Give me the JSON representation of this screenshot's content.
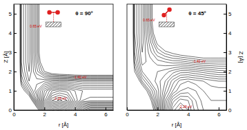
{
  "chart_data": [
    {
      "type": "contour",
      "title": "θ = 90°",
      "xlabel": "r [Å]",
      "ylabel": "Z [Å]",
      "xlim": [
        0,
        6.5
      ],
      "ylim": [
        0,
        5.5
      ],
      "xticks": [
        0,
        2,
        4,
        6
      ],
      "yticks": [
        0,
        1,
        2,
        3,
        4,
        5
      ],
      "x": [
        0,
        0.5,
        1,
        1.5,
        2,
        2.5,
        3,
        3.5,
        4,
        4.5,
        5,
        5.5,
        6,
        6.5
      ],
      "y": [
        0,
        0.5,
        1,
        1.5,
        2,
        2.5,
        3,
        3.5,
        4,
        4.5,
        5,
        5.5
      ],
      "z": [
        [
          5,
          5,
          4,
          2.0,
          0.5,
          -0.5,
          -0.8,
          -0.5,
          0.2,
          1.0,
          1.5,
          1.5,
          1.5,
          1.5
        ],
        [
          5,
          3.5,
          2.2,
          0.6,
          -0.9,
          -2.0,
          -2.3,
          -2.0,
          -1.2,
          -0.6,
          -0.5,
          -0.5,
          -0.5,
          -0.5
        ],
        [
          5,
          2.0,
          1.0,
          0.2,
          -0.6,
          -1.2,
          -1.4,
          -1.3,
          -1.0,
          -0.8,
          -0.8,
          -0.8,
          -0.8,
          -0.8
        ],
        [
          5,
          1.2,
          0.4,
          0.5,
          0.4,
          0.2,
          0.1,
          0.1,
          0.2,
          0.3,
          0.3,
          0.3,
          0.3,
          0.3
        ],
        [
          5,
          0.9,
          0.2,
          0.9,
          1.6,
          2.0,
          2.2,
          2.3,
          2.4,
          2.4,
          2.4,
          2.4,
          2.4,
          2.4
        ],
        [
          5,
          0.8,
          0.1,
          1.1,
          2.2,
          3.0,
          3.6,
          3.8,
          3.9,
          4.0,
          4.0,
          4.0,
          4.0,
          4.0
        ],
        [
          5,
          0.8,
          0.1,
          1.2,
          2.5,
          3.5,
          4.5,
          4.5,
          4.5,
          4.5,
          4.5,
          4.5,
          4.5,
          4.5
        ],
        [
          5,
          0.8,
          0.1,
          1.2,
          2.5,
          3.5,
          4.5,
          4.5,
          4.5,
          4.5,
          4.5,
          4.5,
          4.5,
          4.5
        ],
        [
          5,
          0.8,
          0.1,
          1.2,
          2.5,
          3.5,
          4.5,
          4.5,
          4.5,
          4.5,
          4.5,
          4.5,
          4.5,
          4.5
        ],
        [
          5,
          0.8,
          0.1,
          1.2,
          2.5,
          3.5,
          4.5,
          4.5,
          4.5,
          4.5,
          4.5,
          4.5,
          4.5,
          4.5
        ],
        [
          5,
          0.8,
          0.1,
          1.2,
          2.5,
          3.5,
          4.5,
          4.5,
          4.5,
          4.5,
          4.5,
          4.5,
          4.5,
          4.5
        ],
        [
          5,
          0.8,
          0.1,
          1.2,
          2.5,
          3.5,
          4.5,
          4.5,
          4.5,
          4.5,
          4.5,
          4.5,
          4.5,
          4.5
        ]
      ],
      "levels": [
        -2.2,
        -2.0,
        -1.8,
        -1.6,
        -1.4,
        -1.2,
        -1.0,
        -0.8,
        -0.6,
        -0.4,
        -0.2,
        0.0,
        0.2,
        0.4,
        0.6,
        0.8,
        1.0,
        1.2,
        1.4,
        1.6
      ],
      "annotations": [
        {
          "text": "0.65 eV",
          "x": 1.05,
          "y": 4.3
        },
        {
          "text": "-1.40 eV",
          "x": 3.9,
          "y": 1.65
        },
        {
          "text": "-2.28 eV",
          "x": 2.6,
          "y": 0.55
        }
      ]
    },
    {
      "type": "contour",
      "title": "θ = 45°",
      "xlabel": "r [Å]",
      "ylabel": "Z [Å]",
      "xlim": [
        0,
        6.5
      ],
      "ylim": [
        0,
        5.5
      ],
      "xticks": [
        0,
        2,
        4,
        6
      ],
      "yticks": [
        0,
        1,
        2,
        3,
        4,
        5
      ],
      "x": [
        0,
        0.5,
        1,
        1.5,
        2,
        2.5,
        3,
        3.5,
        4,
        4.5,
        5,
        5.5,
        6,
        6.5
      ],
      "y": [
        0,
        0.5,
        1,
        1.5,
        2,
        2.5,
        3,
        3.5,
        4,
        4.5,
        5,
        5.5
      ],
      "z": [
        [
          5,
          5,
          4.2,
          2.4,
          0.8,
          -0.8,
          -1.9,
          -2.3,
          -2.0,
          -1.5,
          -1.2,
          -1.1,
          -1.1,
          -1.1
        ],
        [
          5,
          4.5,
          3.2,
          1.8,
          0.6,
          -0.6,
          -1.5,
          -1.9,
          -1.8,
          -1.4,
          -1.1,
          -1.0,
          -1.0,
          -1.0
        ],
        [
          5,
          3.5,
          2.2,
          1.2,
          0.5,
          -0.2,
          -0.8,
          -1.2,
          -1.3,
          -1.2,
          -1.0,
          -0.9,
          -0.9,
          -0.9
        ],
        [
          5,
          2.4,
          1.2,
          0.6,
          0.3,
          0.0,
          -0.5,
          -0.9,
          -1.0,
          -0.9,
          -0.8,
          -0.7,
          -0.6,
          -0.6
        ],
        [
          5,
          1.6,
          0.6,
          0.4,
          0.4,
          0.3,
          0.1,
          -0.1,
          -0.1,
          0.0,
          0.1,
          0.2,
          0.3,
          0.3
        ],
        [
          5,
          1.2,
          0.3,
          0.5,
          0.7,
          0.8,
          0.9,
          0.9,
          1.0,
          1.1,
          1.2,
          1.2,
          1.2,
          1.2
        ],
        [
          5,
          1.0,
          0.2,
          0.7,
          1.2,
          1.5,
          1.7,
          1.9,
          2.0,
          2.1,
          2.2,
          2.2,
          2.2,
          2.2
        ],
        [
          5,
          0.9,
          0.1,
          0.9,
          1.7,
          2.3,
          2.7,
          3.0,
          3.2,
          3.3,
          3.4,
          3.4,
          3.4,
          3.4
        ],
        [
          5,
          0.8,
          0.1,
          1.1,
          2.2,
          3.0,
          3.6,
          4.0,
          4.2,
          4.3,
          4.4,
          4.4,
          4.4,
          4.4
        ],
        [
          5,
          0.8,
          0.1,
          1.2,
          2.5,
          3.5,
          4.5,
          4.5,
          4.5,
          4.5,
          4.5,
          4.5,
          4.5,
          4.5
        ],
        [
          5,
          0.8,
          0.1,
          1.2,
          2.5,
          3.5,
          4.5,
          4.5,
          4.5,
          4.5,
          4.5,
          4.5,
          4.5,
          4.5
        ],
        [
          5,
          0.8,
          0.1,
          1.2,
          2.5,
          3.5,
          4.5,
          4.5,
          4.5,
          4.5,
          4.5,
          4.5,
          4.5,
          4.5
        ]
      ],
      "levels": [
        -2.2,
        -2.0,
        -1.8,
        -1.6,
        -1.4,
        -1.2,
        -1.0,
        -0.8,
        -0.6,
        -0.4,
        -0.2,
        0.0,
        0.2,
        0.4,
        0.6,
        0.8,
        1.0,
        1.2,
        1.4,
        1.6
      ],
      "annotations": [
        {
          "text": "0.65 eV",
          "x": 1.05,
          "y": 4.6
        },
        {
          "text": "-1.40 eV",
          "x": 4.3,
          "y": 2.45
        },
        {
          "text": "-2.28 eV",
          "x": 3.4,
          "y": 0.12
        }
      ]
    }
  ]
}
